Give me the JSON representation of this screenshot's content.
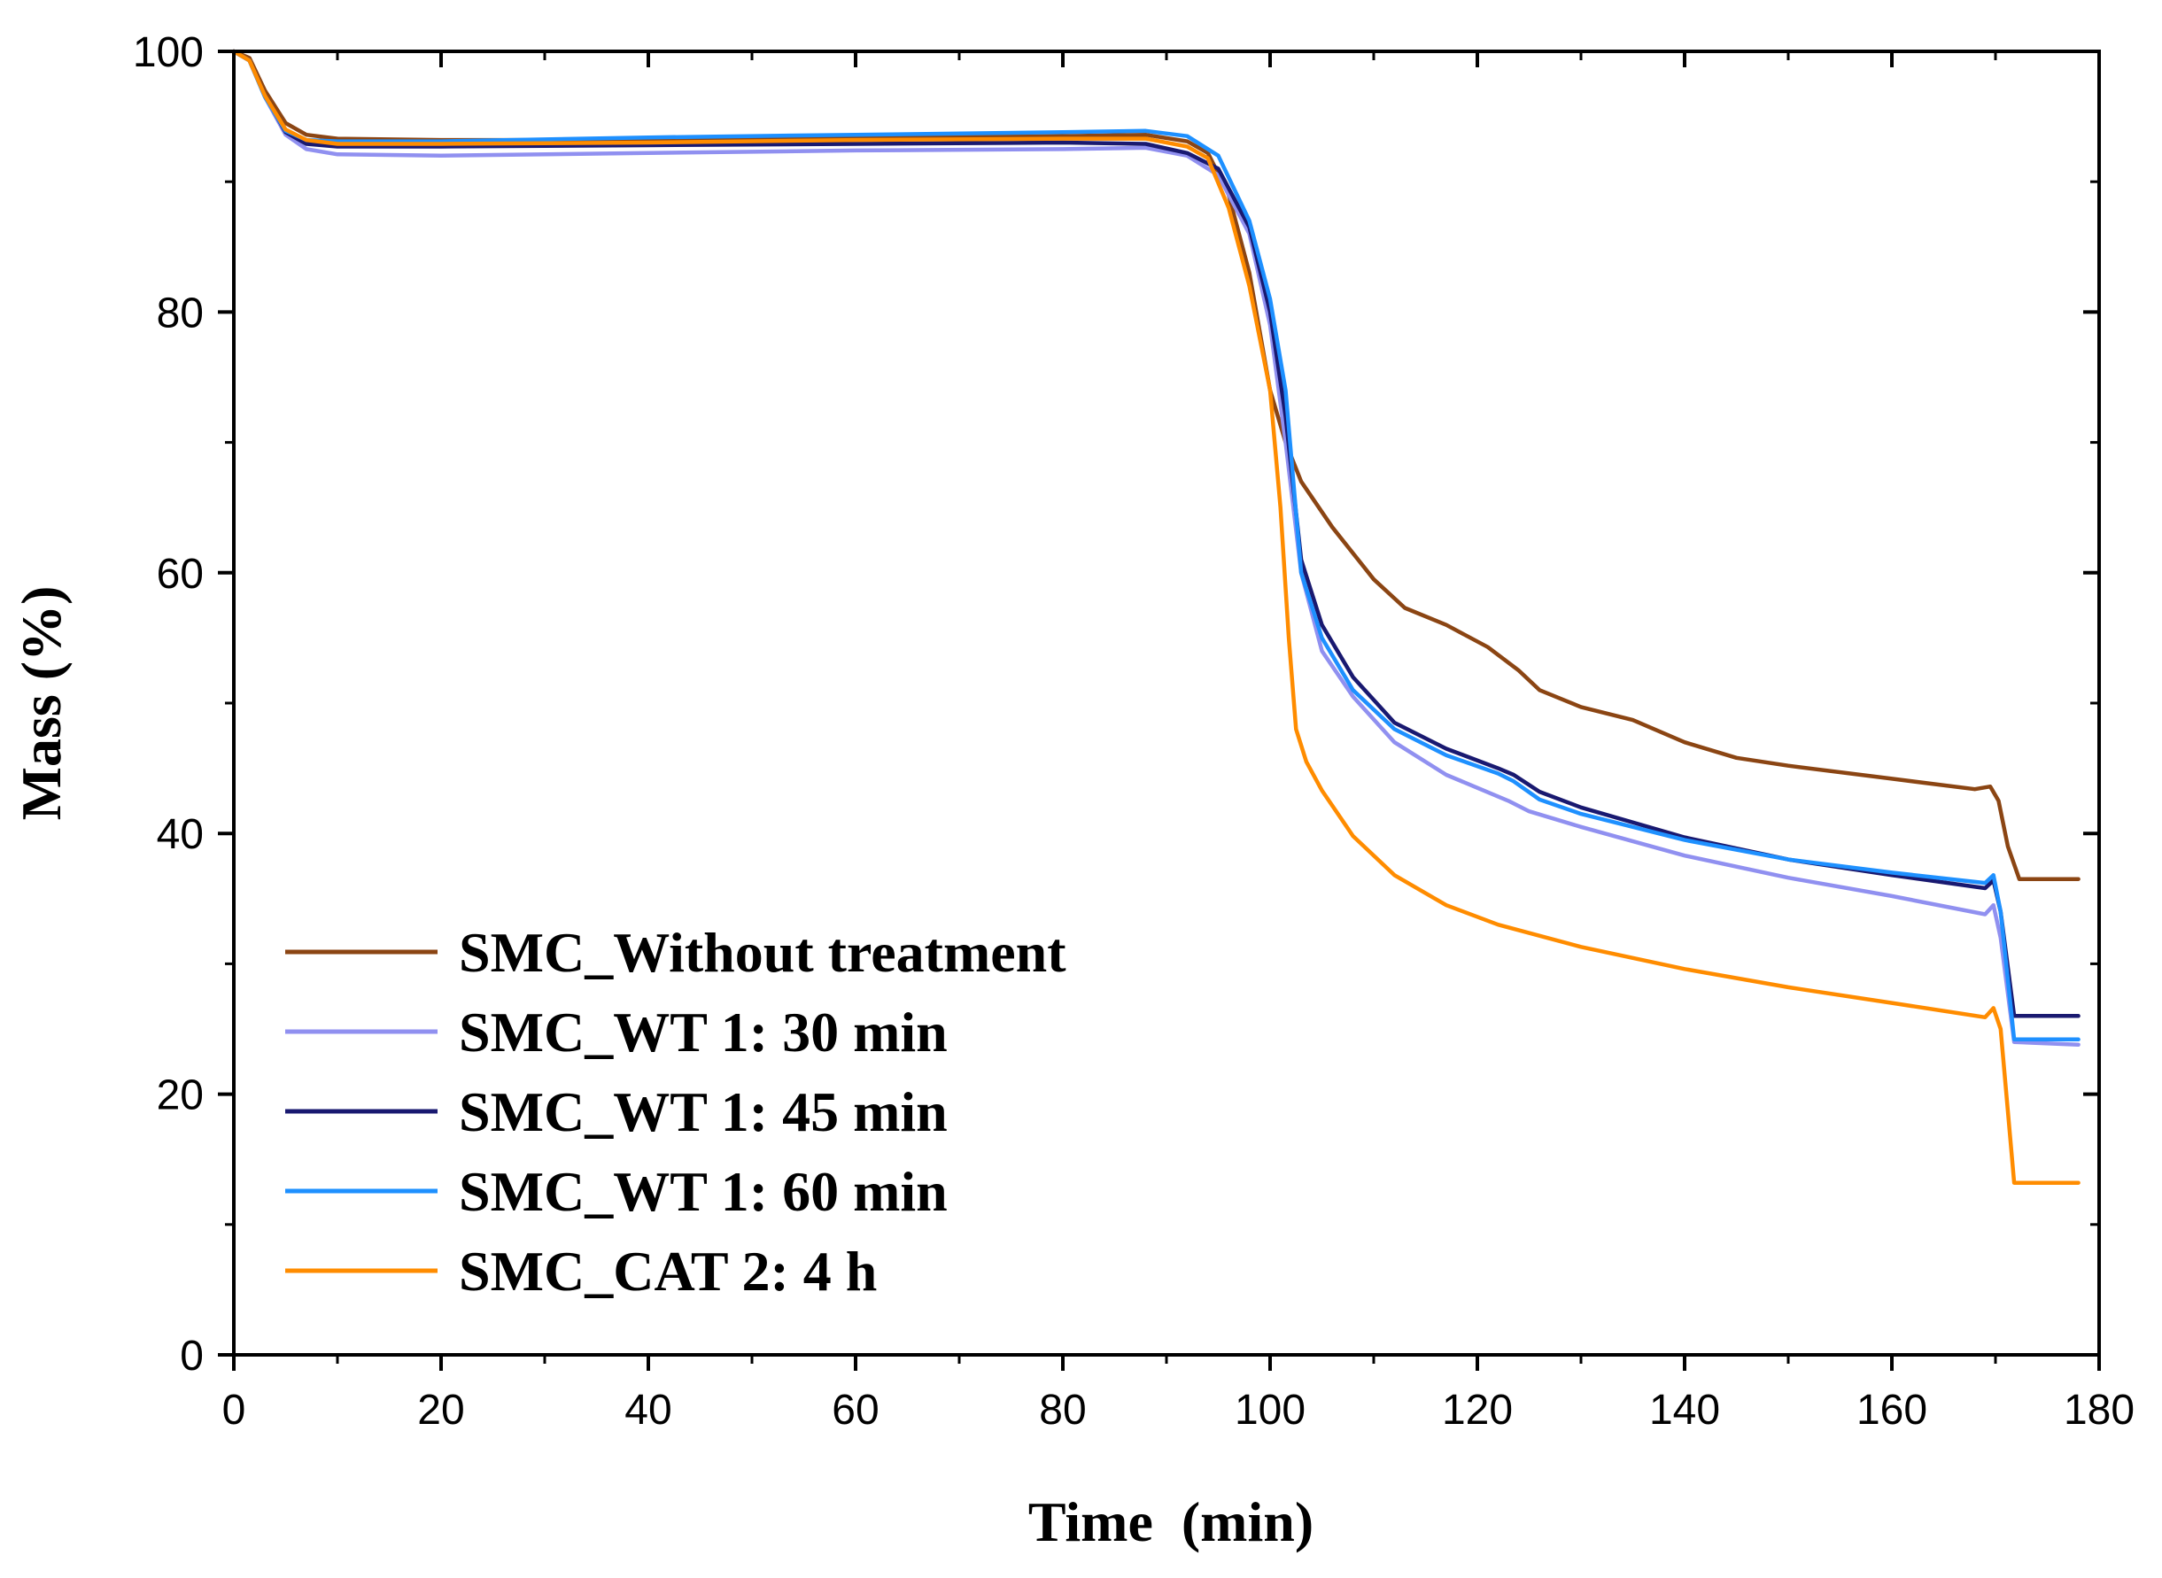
{
  "chart_data": {
    "type": "line",
    "title": "",
    "xlabel": "Time  (min)",
    "ylabel": "Mass (%)",
    "xlim": [
      0,
      180
    ],
    "ylim": [
      0,
      100
    ],
    "x_ticks": [
      0,
      20,
      40,
      60,
      80,
      100,
      120,
      140,
      160,
      180
    ],
    "y_ticks": [
      0,
      20,
      40,
      60,
      80,
      100
    ],
    "x_tick_labels": [
      "0",
      "20",
      "40",
      "60",
      "80",
      "100",
      "120",
      "140",
      "160",
      "180"
    ],
    "y_tick_labels": [
      "0",
      "20",
      "40",
      "60",
      "80",
      "100"
    ],
    "grid": false,
    "legend_position": "bottom-left",
    "series": [
      {
        "name": "SMC_Without treatment",
        "color": "#8B4513",
        "points": [
          [
            0,
            100
          ],
          [
            1.5,
            99.5
          ],
          [
            3,
            97
          ],
          [
            5,
            94.5
          ],
          [
            7,
            93.6
          ],
          [
            10,
            93.3
          ],
          [
            20,
            93.2
          ],
          [
            40,
            93.2
          ],
          [
            60,
            93.4
          ],
          [
            80,
            93.5
          ],
          [
            88,
            93.6
          ],
          [
            92,
            93.1
          ],
          [
            94,
            92.2
          ],
          [
            96,
            89
          ],
          [
            98,
            83
          ],
          [
            100,
            74
          ],
          [
            101.5,
            70
          ],
          [
            103,
            67
          ],
          [
            106,
            63.5
          ],
          [
            110,
            59.5
          ],
          [
            113,
            57.3
          ],
          [
            117,
            56
          ],
          [
            121,
            54.3
          ],
          [
            124,
            52.5
          ],
          [
            126,
            51
          ],
          [
            130,
            49.7
          ],
          [
            135,
            48.7
          ],
          [
            140,
            47
          ],
          [
            145,
            45.8
          ],
          [
            150,
            45.2
          ],
          [
            160,
            44.2
          ],
          [
            168,
            43.4
          ],
          [
            169.5,
            43.6
          ],
          [
            170.3,
            42.5
          ],
          [
            171.2,
            39
          ],
          [
            172.3,
            36.5
          ],
          [
            178,
            36.5
          ]
        ]
      },
      {
        "name": "SMC_WT 1: 30 min",
        "color": "#9090F0",
        "points": [
          [
            0,
            100
          ],
          [
            1.5,
            99.3
          ],
          [
            3,
            96.5
          ],
          [
            5,
            93.6
          ],
          [
            7,
            92.5
          ],
          [
            10,
            92.1
          ],
          [
            20,
            92.0
          ],
          [
            40,
            92.2
          ],
          [
            60,
            92.4
          ],
          [
            80,
            92.5
          ],
          [
            88,
            92.6
          ],
          [
            92,
            92.0
          ],
          [
            95,
            90.5
          ],
          [
            98,
            86
          ],
          [
            100,
            79
          ],
          [
            101.5,
            70
          ],
          [
            103,
            60
          ],
          [
            105,
            54
          ],
          [
            108,
            50.5
          ],
          [
            112,
            47
          ],
          [
            117,
            44.5
          ],
          [
            123,
            42.5
          ],
          [
            125,
            41.7
          ],
          [
            130,
            40.5
          ],
          [
            140,
            38.3
          ],
          [
            150,
            36.6
          ],
          [
            160,
            35.2
          ],
          [
            169,
            33.8
          ],
          [
            169.8,
            34.5
          ],
          [
            170.5,
            32
          ],
          [
            171.8,
            24
          ],
          [
            178,
            23.8
          ]
        ]
      },
      {
        "name": "SMC_WT 1: 45 min",
        "color": "#191970",
        "points": [
          [
            0,
            100
          ],
          [
            1.5,
            99.3
          ],
          [
            3,
            96.6
          ],
          [
            5,
            93.8
          ],
          [
            7,
            92.9
          ],
          [
            10,
            92.7
          ],
          [
            20,
            92.7
          ],
          [
            40,
            92.8
          ],
          [
            60,
            92.9
          ],
          [
            80,
            93.0
          ],
          [
            88,
            92.9
          ],
          [
            92,
            92.2
          ],
          [
            95,
            91.0
          ],
          [
            98,
            86.5
          ],
          [
            100,
            80
          ],
          [
            101.5,
            72
          ],
          [
            103,
            61
          ],
          [
            105,
            56
          ],
          [
            108,
            52
          ],
          [
            112,
            48.5
          ],
          [
            117,
            46.5
          ],
          [
            122,
            45
          ],
          [
            123.5,
            44.5
          ],
          [
            126,
            43.2
          ],
          [
            130,
            42
          ],
          [
            140,
            39.7
          ],
          [
            150,
            38
          ],
          [
            160,
            36.8
          ],
          [
            169,
            35.8
          ],
          [
            169.8,
            36.4
          ],
          [
            170.5,
            34
          ],
          [
            171.8,
            26
          ],
          [
            178,
            26
          ]
        ]
      },
      {
        "name": "SMC_WT 1: 60 min",
        "color": "#1E90FF",
        "points": [
          [
            0,
            100
          ],
          [
            1.5,
            99.3
          ],
          [
            3,
            96.5
          ],
          [
            5,
            93.9
          ],
          [
            7,
            93.2
          ],
          [
            10,
            93.1
          ],
          [
            20,
            93.1
          ],
          [
            40,
            93.4
          ],
          [
            60,
            93.6
          ],
          [
            80,
            93.8
          ],
          [
            88,
            93.9
          ],
          [
            92,
            93.5
          ],
          [
            95,
            92.0
          ],
          [
            98,
            87
          ],
          [
            100,
            81
          ],
          [
            101.5,
            74
          ],
          [
            103,
            60
          ],
          [
            105,
            55
          ],
          [
            108,
            51
          ],
          [
            112,
            48
          ],
          [
            117,
            46
          ],
          [
            122,
            44.6
          ],
          [
            123.5,
            44
          ],
          [
            126,
            42.6
          ],
          [
            130,
            41.5
          ],
          [
            140,
            39.5
          ],
          [
            150,
            38
          ],
          [
            160,
            37
          ],
          [
            169,
            36.2
          ],
          [
            169.8,
            36.8
          ],
          [
            170.5,
            34
          ],
          [
            171.8,
            24.2
          ],
          [
            178,
            24.2
          ]
        ]
      },
      {
        "name": "SMC_CAT 2: 4 h",
        "color": "#FF8C00",
        "points": [
          [
            0,
            100
          ],
          [
            1.5,
            99.3
          ],
          [
            3,
            96.6
          ],
          [
            5,
            94
          ],
          [
            7,
            93.2
          ],
          [
            10,
            92.9
          ],
          [
            20,
            92.9
          ],
          [
            40,
            93.0
          ],
          [
            60,
            93.2
          ],
          [
            80,
            93.3
          ],
          [
            88,
            93.3
          ],
          [
            92,
            92.7
          ],
          [
            94,
            91.8
          ],
          [
            96,
            88
          ],
          [
            98,
            82
          ],
          [
            100,
            74
          ],
          [
            101,
            65
          ],
          [
            101.8,
            55
          ],
          [
            102.5,
            48
          ],
          [
            103.5,
            45.5
          ],
          [
            105,
            43.3
          ],
          [
            108,
            39.8
          ],
          [
            112,
            36.8
          ],
          [
            117,
            34.5
          ],
          [
            122,
            33
          ],
          [
            130,
            31.3
          ],
          [
            140,
            29.6
          ],
          [
            150,
            28.2
          ],
          [
            160,
            27
          ],
          [
            169,
            25.9
          ],
          [
            169.8,
            26.6
          ],
          [
            170.5,
            25
          ],
          [
            171.8,
            13.2
          ],
          [
            178,
            13.2
          ]
        ]
      }
    ]
  }
}
